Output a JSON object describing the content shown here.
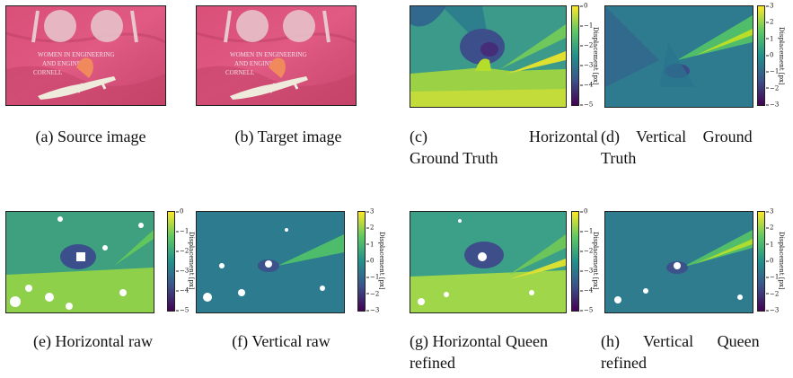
{
  "captions": {
    "a": "(a) Source image",
    "b": "(b) Target image",
    "c_line1": "(c)",
    "c_line1_right": "Horizontal",
    "c_line2": "Ground Truth",
    "d_line1": "(d) Vertical Ground",
    "d_line2": "Truth",
    "e": "(e) Horizontal raw",
    "f": "(f) Vertical raw",
    "g_line1": "(g) Horizontal Queen",
    "g_line2": "refined",
    "h_line1": "(h) Vertical Queen",
    "h_line2": "refined"
  },
  "source_image_text": {
    "line1": "WOMEN IN ENGINEERING",
    "line2": "AND ENGINEERS",
    "line3": "CORNELL"
  },
  "colorbar": {
    "label": "Displacement [px]",
    "horizontal_ticks": [
      "0",
      "−1",
      "−2",
      "−3",
      "−4",
      "−5"
    ],
    "vertical_ticks": [
      "3",
      "2",
      "1",
      "0",
      "−1",
      "−2",
      "−3"
    ],
    "colormap": "viridis"
  },
  "colors": {
    "fabric": "#d9537a",
    "viridis_yellow": "#fde725",
    "viridis_green": "#5ec962",
    "viridis_teal": "#21918c",
    "viridis_blue": "#3b528b",
    "viridis_purple": "#440154"
  }
}
